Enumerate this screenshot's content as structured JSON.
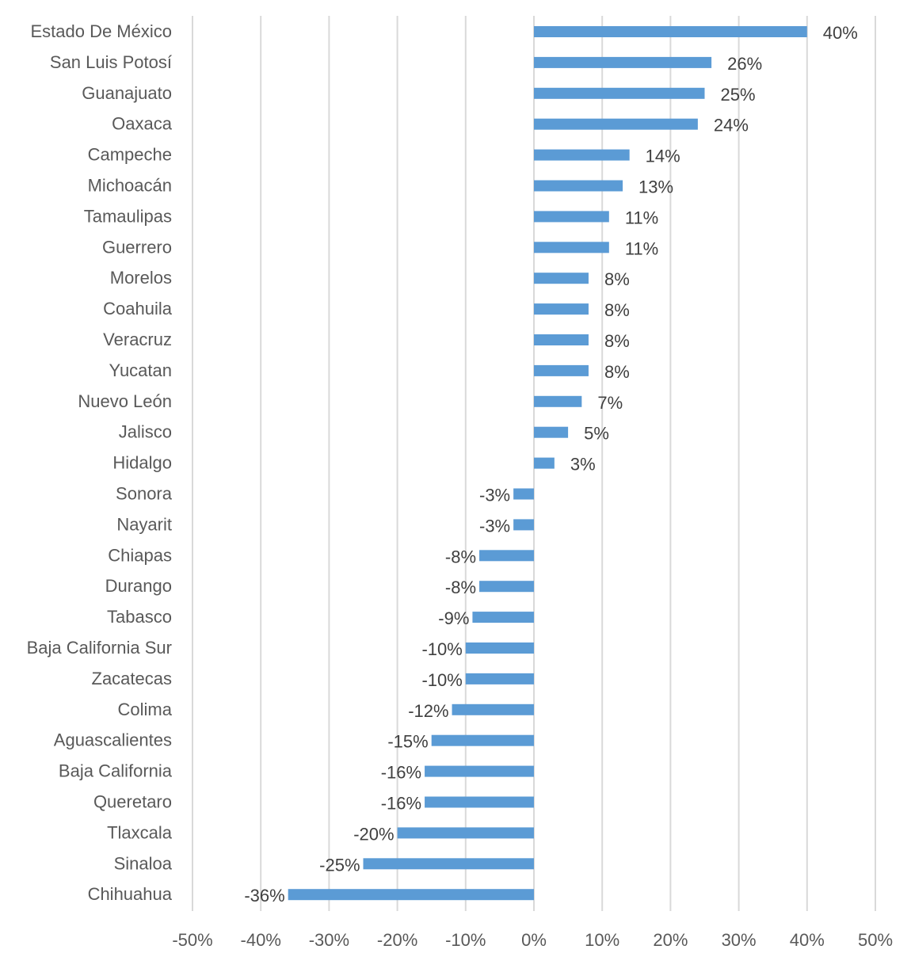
{
  "chart_data": {
    "type": "bar",
    "orientation": "horizontal",
    "title": "",
    "xlabel": "",
    "ylabel": "",
    "xlim": [
      -0.5,
      0.5
    ],
    "grid": true,
    "legend": "none",
    "bar_color": "#5B9BD5",
    "grid_color": "#D9D9D9",
    "x_ticks": [
      "-50%",
      "-40%",
      "-30%",
      "-20%",
      "-10%",
      "0%",
      "10%",
      "20%",
      "30%",
      "40%",
      "50%"
    ],
    "x_tick_values": [
      -0.5,
      -0.4,
      -0.3,
      -0.2,
      -0.1,
      0,
      0.1,
      0.2,
      0.3,
      0.4,
      0.5
    ],
    "categories": [
      "Estado De México",
      "San Luis Potosí",
      "Guanajuato",
      "Oaxaca",
      "Campeche",
      "Michoacán",
      "Tamaulipas",
      "Guerrero",
      "Morelos",
      "Coahuila",
      "Veracruz",
      "Yucatan",
      "Nuevo León",
      "Jalisco",
      "Hidalgo",
      "Sonora",
      "Nayarit",
      "Chiapas",
      "Durango",
      "Tabasco",
      "Baja California Sur",
      "Zacatecas",
      "Colima",
      "Aguascalientes",
      "Baja California",
      "Queretaro",
      "Tlaxcala",
      "Sinaloa",
      "Chihuahua"
    ],
    "values": [
      0.4,
      0.26,
      0.25,
      0.24,
      0.14,
      0.13,
      0.11,
      0.11,
      0.08,
      0.08,
      0.08,
      0.08,
      0.07,
      0.05,
      0.03,
      -0.03,
      -0.03,
      -0.08,
      -0.08,
      -0.09,
      -0.1,
      -0.1,
      -0.12,
      -0.15,
      -0.16,
      -0.16,
      -0.2,
      -0.25,
      -0.36
    ],
    "data_labels": [
      "40%",
      "26%",
      "25%",
      "24%",
      "14%",
      "13%",
      "11%",
      "11%",
      "8%",
      "8%",
      "8%",
      "8%",
      "7%",
      "5%",
      "3%",
      "-3%",
      "-3%",
      "-8%",
      "-8%",
      "-9%",
      "-10%",
      "-10%",
      "-12%",
      "-15%",
      "-16%",
      "-16%",
      "-20%",
      "-25%",
      "-36%"
    ]
  }
}
